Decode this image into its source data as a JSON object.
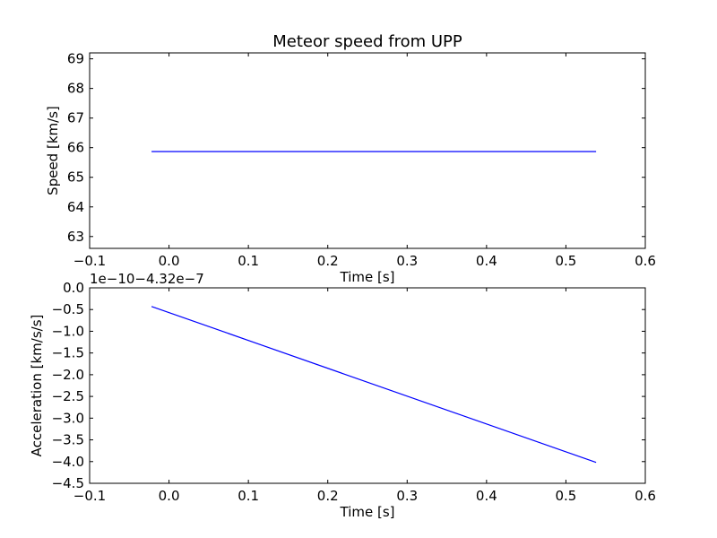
{
  "chart_data": [
    {
      "type": "line",
      "title": "Meteor speed from  UPP",
      "xlabel": "Time [s]",
      "ylabel": "Speed [km/s]",
      "xlim": [
        -0.1,
        0.6
      ],
      "ylim": [
        62.6,
        69.2
      ],
      "xticks": [
        -0.1,
        0.0,
        0.1,
        0.2,
        0.3,
        0.4,
        0.5,
        0.6
      ],
      "xtick_labels": [
        "−0.1",
        "0.0",
        "0.1",
        "0.2",
        "0.3",
        "0.4",
        "0.5",
        "0.6"
      ],
      "yticks": [
        63,
        64,
        65,
        66,
        67,
        68,
        69
      ],
      "ytick_labels": [
        "63",
        "64",
        "65",
        "66",
        "67",
        "68",
        "69"
      ],
      "series": [
        {
          "color": "#0000ff",
          "x": [
            -0.022,
            0.538
          ],
          "y": [
            65.87,
            65.87
          ]
        }
      ]
    },
    {
      "type": "line",
      "xlabel": "Time [s]",
      "ylabel": "Acceleration [km/s/s]",
      "offset_text": "1e−10−4.32e−7",
      "xlim": [
        -0.1,
        0.6
      ],
      "ylim": [
        -4.5,
        0.0
      ],
      "xticks": [
        -0.1,
        0.0,
        0.1,
        0.2,
        0.3,
        0.4,
        0.5,
        0.6
      ],
      "xtick_labels": [
        "−0.1",
        "0.0",
        "0.1",
        "0.2",
        "0.3",
        "0.4",
        "0.5",
        "0.6"
      ],
      "yticks": [
        0.0,
        -0.5,
        -1.0,
        -1.5,
        -2.0,
        -2.5,
        -3.0,
        -3.5,
        -4.0,
        -4.5
      ],
      "ytick_labels": [
        "0.0",
        "−0.5",
        "−1.0",
        "−1.5",
        "−2.0",
        "−2.5",
        "−3.0",
        "−3.5",
        "−4.0",
        "−4.5"
      ],
      "series": [
        {
          "color": "#0000ff",
          "x": [
            -0.022,
            0.538
          ],
          "y": [
            -0.43,
            -4.02
          ]
        }
      ]
    }
  ]
}
